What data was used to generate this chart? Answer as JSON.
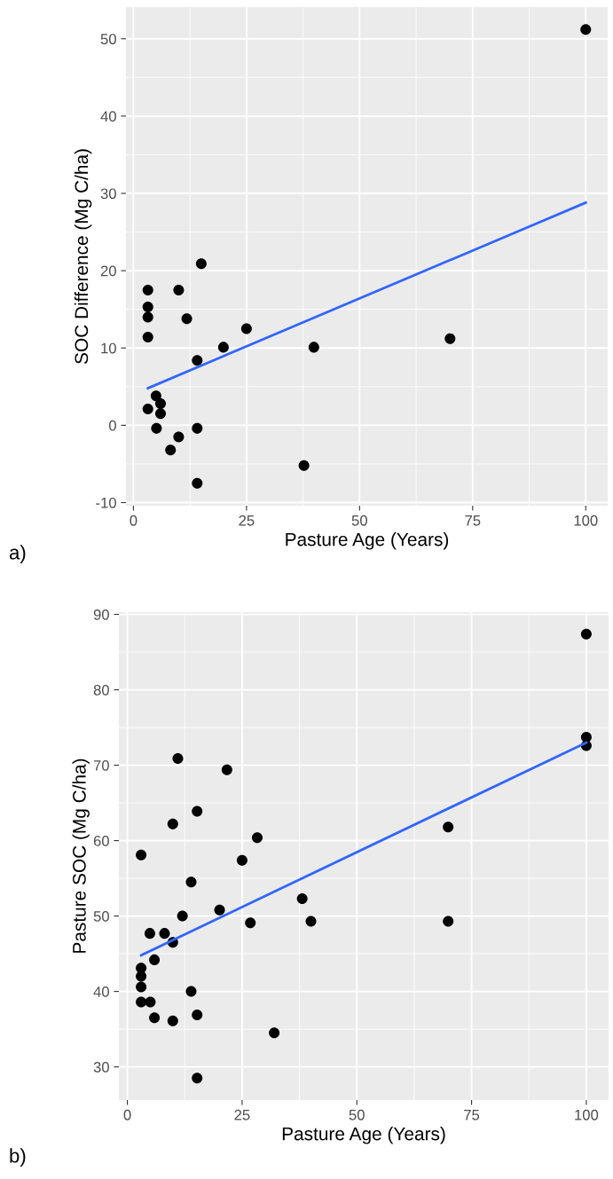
{
  "chart_data": [
    {
      "type": "scatter",
      "xlabel": "Pasture Age (Years)",
      "ylabel": "SOC Difference (Mg C/ha)",
      "annotations": [
        "a)"
      ],
      "xlim": [
        -1.65,
        104.85
      ],
      "ylim": [
        -10.4,
        54.1
      ],
      "xticks": [
        0,
        25,
        50,
        75,
        100
      ],
      "yticks": [
        -10,
        0,
        10,
        20,
        30,
        40,
        50
      ],
      "grid": true,
      "series": [
        {
          "marker": "circle",
          "color": "#000000",
          "x": [
            15.0,
            3.2,
            10.0,
            3.2,
            3.2,
            11.8,
            3.2,
            25.0,
            19.9,
            39.9,
            14.1,
            5.0,
            6.0,
            3.2,
            6.0,
            5.1,
            14.1,
            10.0,
            8.2,
            37.7,
            14.1,
            70.0,
            100.0
          ],
          "values": [
            20.9,
            17.5,
            17.5,
            15.3,
            14.0,
            13.8,
            11.4,
            12.5,
            10.1,
            10.1,
            8.4,
            3.8,
            2.8,
            2.1,
            1.5,
            -0.4,
            -0.4,
            -1.5,
            -3.2,
            -5.2,
            -7.5,
            11.2,
            51.2
          ]
        },
        {
          "type": "line",
          "color": "#3366ff",
          "x": [
            3.2,
            100.0
          ],
          "values": [
            4.8,
            28.8
          ]
        }
      ]
    },
    {
      "type": "scatter",
      "xlabel": "Pasture Age (Years)",
      "ylabel": "Pasture SOC (Mg C/ha)",
      "annotations": [
        "b)"
      ],
      "xlim": [
        -1.85,
        104.85
      ],
      "ylim": [
        25.6,
        90.3
      ],
      "xticks": [
        0,
        25,
        50,
        75,
        100
      ],
      "yticks": [
        30,
        40,
        50,
        60,
        70,
        80,
        90
      ],
      "grid": true,
      "series": [
        {
          "marker": "circle",
          "color": "#000000",
          "x": [
            11.0,
            21.7,
            15.2,
            9.9,
            28.3,
            3.0,
            25.0,
            13.9,
            12.0,
            20.1,
            38.1,
            40.0,
            26.8,
            4.9,
            8.1,
            9.9,
            5.9,
            3.0,
            3.0,
            3.0,
            13.9,
            3.0,
            5.0,
            5.9,
            9.9,
            15.2,
            32.0,
            15.2,
            100.0,
            100.0,
            100.0,
            69.9,
            69.9
          ],
          "values": [
            70.9,
            69.4,
            63.9,
            62.2,
            60.4,
            58.1,
            57.4,
            54.5,
            50.0,
            50.8,
            52.3,
            49.3,
            49.1,
            47.7,
            47.7,
            46.5,
            44.2,
            43.1,
            42.0,
            40.6,
            40.0,
            38.6,
            38.6,
            36.5,
            36.1,
            36.9,
            34.5,
            28.5,
            87.4,
            73.7,
            72.6,
            61.8,
            49.3
          ]
        },
        {
          "type": "line",
          "color": "#3366ff",
          "x": [
            3.0,
            100.0
          ],
          "values": [
            44.8,
            73.0
          ]
        }
      ]
    }
  ]
}
